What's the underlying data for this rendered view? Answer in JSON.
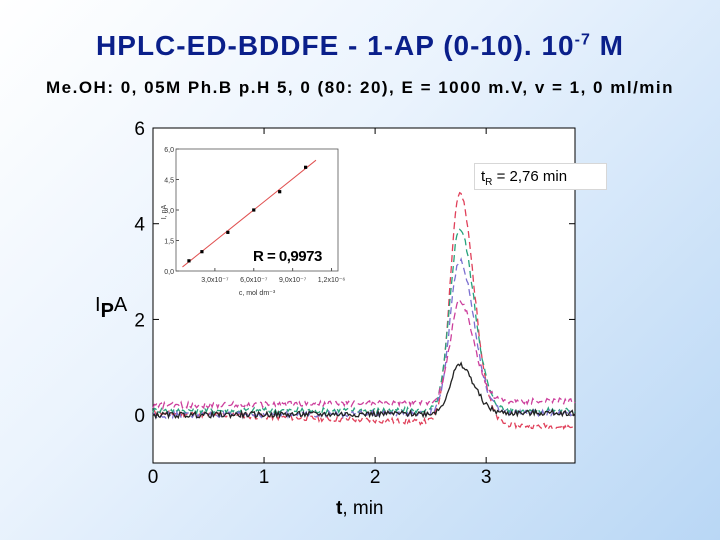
{
  "slide": {
    "title_main": "HPLC-ED-BDDFE - 1-AP (0-10). 10",
    "title_exp": "-7",
    "title_unit": " M",
    "subtitle": "Me.OH: 0, 05M Ph.B p.H 5, 0 (80: 20), E = 1000 m.V, v = 1, 0 ml/min"
  },
  "chart_data": [
    {
      "type": "line",
      "title": "",
      "xlabel_bold": "t",
      "xlabel_rest": ", min",
      "ylabel_main": "I",
      "ylabel_sub": "P",
      "ylabel_unit": "A",
      "xlim": [
        0,
        3.8
      ],
      "ylim": [
        -1,
        6
      ],
      "x_ticks": [
        "0",
        "1",
        "2",
        "3"
      ],
      "y_ticks": [
        "0",
        "2",
        "4",
        "6"
      ],
      "annotation_main": "t",
      "annotation_sub": "R",
      "annotation_value": " = 2,76 min",
      "peak_time": 2.76,
      "series": [
        {
          "color": "#e0405a",
          "peak": 4.8,
          "baseline": 0.05,
          "drift": -0.3
        },
        {
          "color": "#26a37c",
          "peak": 3.8,
          "baseline": 0.1,
          "drift": 0.0
        },
        {
          "color": "#7b6fd0",
          "peak": 3.2,
          "baseline": 0.0,
          "drift": 0.05
        },
        {
          "color": "#cc3f9c",
          "peak": 2.1,
          "baseline": 0.2,
          "drift": 0.1
        },
        {
          "color": "#222222",
          "peak": 1.0,
          "baseline": 0.0,
          "drift": 0.05
        }
      ]
    },
    {
      "type": "scatter",
      "title": "",
      "xlabel": "c, mol dm⁻³",
      "ylabel": "I, nA",
      "x_ticks": [
        "3,0x10⁻⁷",
        "6,0x10⁻⁷",
        "9,0x10⁻⁷",
        "1,2x10⁻⁶"
      ],
      "y_ticks": [
        "0,0",
        "1,5",
        "3,0",
        "4,5",
        "6,0"
      ],
      "xlim": [
        0,
        1.25e-06
      ],
      "ylim": [
        0,
        6
      ],
      "annotation": "R = 0,9973",
      "x": [
        1e-07,
        2e-07,
        4e-07,
        6e-07,
        8e-07,
        1e-06
      ],
      "y": [
        0.5,
        0.95,
        1.9,
        3.0,
        3.9,
        5.1
      ],
      "fit": {
        "color": "#e05050",
        "x": [
          5e-08,
          1.08e-06
        ],
        "y": [
          0.2,
          5.45
        ]
      }
    }
  ]
}
